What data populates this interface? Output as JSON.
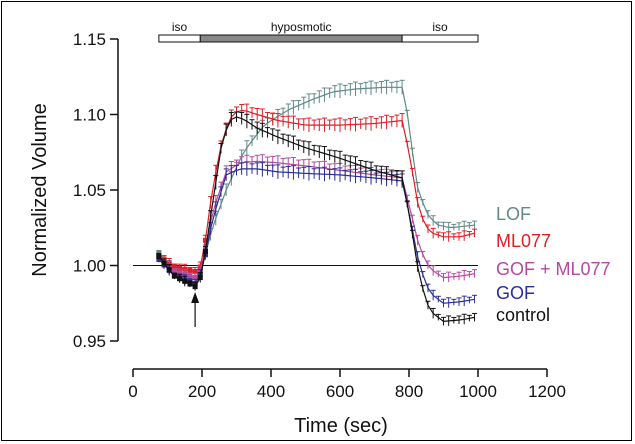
{
  "chart_data": {
    "type": "line",
    "xlabel": "Time (sec)",
    "ylabel": "Normalized Volume",
    "xlim": [
      0,
      1200
    ],
    "ylim": [
      0.95,
      1.15
    ],
    "x_ticks": [
      "0",
      "200",
      "400",
      "600",
      "800",
      "1000",
      "1200"
    ],
    "y_ticks": [
      "0.95",
      "1.00",
      "1.05",
      "1.10",
      "1.15"
    ],
    "reference_line": 1.0,
    "arrow_at_x": 180,
    "conditions": [
      {
        "label": "iso",
        "start": 75,
        "end": 195,
        "fill": "#ffffff"
      },
      {
        "label": "hyposmotic",
        "start": 195,
        "end": 780,
        "fill": "#888888"
      },
      {
        "label": "iso",
        "start": 780,
        "end": 1000,
        "fill": "#ffffff"
      }
    ],
    "series": [
      {
        "name": "LOF",
        "color": "#5f8a88",
        "points": [
          [
            75,
            1.008
          ],
          [
            120,
            0.996
          ],
          [
            180,
            0.988
          ],
          [
            200,
            0.998
          ],
          [
            230,
            1.025
          ],
          [
            270,
            1.05
          ],
          [
            320,
            1.075
          ],
          [
            380,
            1.093
          ],
          [
            450,
            1.103
          ],
          [
            520,
            1.11
          ],
          [
            580,
            1.115
          ],
          [
            650,
            1.117
          ],
          [
            730,
            1.118
          ],
          [
            780,
            1.118
          ],
          [
            800,
            1.095
          ],
          [
            820,
            1.055
          ],
          [
            850,
            1.035
          ],
          [
            880,
            1.027
          ],
          [
            920,
            1.025
          ],
          [
            960,
            1.026
          ],
          [
            1000,
            1.027
          ]
        ]
      },
      {
        "name": "ML077",
        "color": "#dd1f26",
        "points": [
          [
            75,
            1.006
          ],
          [
            120,
            0.999
          ],
          [
            180,
            0.996
          ],
          [
            200,
            1.0
          ],
          [
            230,
            1.05
          ],
          [
            260,
            1.085
          ],
          [
            290,
            1.101
          ],
          [
            320,
            1.103
          ],
          [
            360,
            1.1
          ],
          [
            420,
            1.096
          ],
          [
            500,
            1.093
          ],
          [
            600,
            1.093
          ],
          [
            700,
            1.094
          ],
          [
            780,
            1.096
          ],
          [
            800,
            1.075
          ],
          [
            830,
            1.035
          ],
          [
            860,
            1.022
          ],
          [
            900,
            1.019
          ],
          [
            950,
            1.019
          ],
          [
            1000,
            1.022
          ]
        ]
      },
      {
        "name": "GOF + ML077",
        "color": "#b44a9e",
        "points": [
          [
            75,
            1.006
          ],
          [
            120,
            0.996
          ],
          [
            180,
            0.992
          ],
          [
            200,
            0.998
          ],
          [
            230,
            1.035
          ],
          [
            270,
            1.062
          ],
          [
            310,
            1.068
          ],
          [
            360,
            1.069
          ],
          [
            420,
            1.068
          ],
          [
            500,
            1.066
          ],
          [
            600,
            1.063
          ],
          [
            700,
            1.06
          ],
          [
            780,
            1.058
          ],
          [
            800,
            1.04
          ],
          [
            830,
            1.012
          ],
          [
            860,
            0.998
          ],
          [
            900,
            0.992
          ],
          [
            950,
            0.993
          ],
          [
            1000,
            0.995
          ]
        ]
      },
      {
        "name": "GOF",
        "color": "#2a2f96",
        "points": [
          [
            75,
            1.004
          ],
          [
            120,
            0.993
          ],
          [
            180,
            0.988
          ],
          [
            200,
            0.996
          ],
          [
            230,
            1.03
          ],
          [
            270,
            1.06
          ],
          [
            310,
            1.064
          ],
          [
            360,
            1.064
          ],
          [
            420,
            1.062
          ],
          [
            500,
            1.061
          ],
          [
            600,
            1.06
          ],
          [
            700,
            1.058
          ],
          [
            780,
            1.056
          ],
          [
            800,
            1.035
          ],
          [
            830,
            1.0
          ],
          [
            860,
            0.982
          ],
          [
            900,
            0.975
          ],
          [
            950,
            0.976
          ],
          [
            1000,
            0.978
          ]
        ]
      },
      {
        "name": "control",
        "color": "#111111",
        "points": [
          [
            75,
            1.006
          ],
          [
            120,
            0.993
          ],
          [
            180,
            0.986
          ],
          [
            200,
            0.994
          ],
          [
            230,
            1.04
          ],
          [
            260,
            1.085
          ],
          [
            290,
            1.099
          ],
          [
            320,
            1.097
          ],
          [
            360,
            1.091
          ],
          [
            420,
            1.085
          ],
          [
            500,
            1.078
          ],
          [
            600,
            1.071
          ],
          [
            700,
            1.063
          ],
          [
            780,
            1.058
          ],
          [
            800,
            1.035
          ],
          [
            830,
            0.992
          ],
          [
            860,
            0.97
          ],
          [
            900,
            0.963
          ],
          [
            950,
            0.964
          ],
          [
            1000,
            0.966
          ]
        ]
      }
    ]
  }
}
